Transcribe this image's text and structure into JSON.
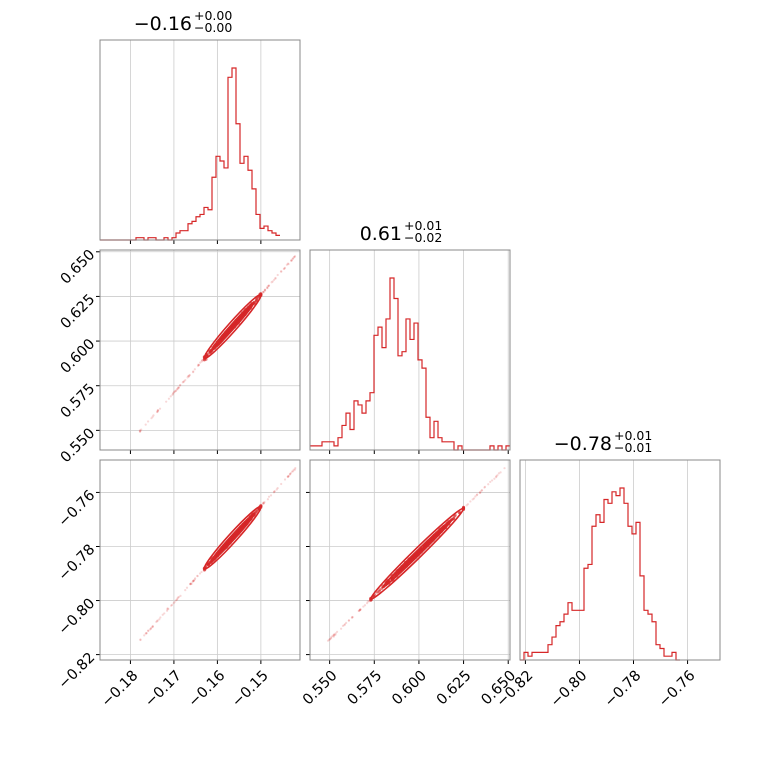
{
  "color": "#d62728",
  "chart_data": {
    "type": "corner",
    "parameters": 3,
    "titles": [
      {
        "median": "−0.16",
        "plus": "+0.00",
        "minus": "−0.00"
      },
      {
        "median": "0.61",
        "plus": "+0.01",
        "minus": "−0.02"
      },
      {
        "median": "−0.78",
        "plus": "+0.01",
        "minus": "−0.01"
      }
    ],
    "ranges": [
      [
        -0.187,
        -0.141
      ],
      [
        0.539,
        0.651
      ],
      [
        -0.822,
        -0.748
      ]
    ],
    "ticks": [
      [
        -0.18,
        -0.17,
        -0.16,
        -0.15
      ],
      [
        0.55,
        0.575,
        0.6,
        0.625,
        0.65
      ],
      [
        -0.82,
        -0.8,
        -0.78,
        -0.76
      ]
    ],
    "tick_labels": [
      [
        "−0.18",
        "−0.17",
        "−0.16",
        "−0.15"
      ],
      [
        "0.550",
        "0.575",
        "0.600",
        "0.625",
        "0.650"
      ],
      [
        "−0.82",
        "−0.80",
        "−0.78",
        "−0.76"
      ]
    ],
    "histograms": [
      {
        "param": 0,
        "x_start": -0.187,
        "bin_width": 0.00092,
        "counts": [
          0,
          0,
          0,
          0,
          0,
          0,
          0,
          0,
          0,
          1,
          1,
          0,
          1,
          1,
          0,
          0,
          1,
          0,
          1,
          3,
          4,
          4,
          7,
          8,
          10,
          11,
          14,
          13,
          27,
          36,
          34,
          31,
          70,
          74,
          50,
          33,
          36,
          30,
          22,
          11,
          5,
          6,
          4,
          3,
          2
        ]
      },
      {
        "param": 1,
        "x_start": 0.539,
        "bin_width": 0.00224,
        "counts": [
          1,
          1,
          1,
          2,
          2,
          2,
          1,
          3,
          6,
          9,
          5,
          12,
          11,
          9,
          12,
          14,
          28,
          30,
          25,
          32,
          42,
          37,
          23,
          24,
          32,
          27,
          31,
          22,
          20,
          8,
          3,
          7,
          3,
          2,
          2,
          2,
          0,
          1,
          0,
          0,
          0,
          0,
          0,
          0,
          0,
          1,
          0,
          1,
          0,
          1
        ]
      },
      {
        "param": 2,
        "x_start": -0.822,
        "bin_width": 0.00148,
        "counts": [
          0,
          2,
          1,
          2,
          2,
          2,
          2,
          4,
          6,
          9,
          10,
          12,
          15,
          13,
          13,
          13,
          24,
          25,
          35,
          38,
          36,
          42,
          41,
          44,
          43,
          45,
          41,
          35,
          33,
          36,
          22,
          13,
          12,
          10,
          4,
          3,
          1,
          1,
          2,
          0
        ]
      }
    ],
    "scatter_2d": [
      {
        "x_param": 0,
        "y_param": 1,
        "x_range": [
          -0.178,
          -0.142
        ],
        "y_range": [
          0.549,
          0.648
        ],
        "trend": "y ≈ 0.61 + 2.55·(x + 0.156)",
        "dense_x_range": [
          -0.163,
          -0.15
        ],
        "dense_y_range": [
          0.578,
          0.626
        ]
      },
      {
        "x_param": 0,
        "y_param": 2,
        "x_range": [
          -0.178,
          -0.142
        ],
        "y_range": [
          -0.815,
          -0.751
        ],
        "trend": "y ≈ −0.78 + 1.76·(x + 0.156)",
        "dense_x_range": [
          -0.163,
          -0.15
        ],
        "dense_y_range": [
          -0.799,
          -0.768
        ]
      },
      {
        "x_param": 1,
        "y_param": 2,
        "x_range": [
          0.549,
          0.648
        ],
        "y_range": [
          -0.815,
          -0.751
        ],
        "trend": "y ≈ −0.78 + 0.69·(x − 0.61)",
        "dense_x_range": [
          0.573,
          0.625
        ],
        "dense_y_range": [
          -0.802,
          -0.767
        ]
      }
    ],
    "grid": true,
    "legend": "none"
  }
}
